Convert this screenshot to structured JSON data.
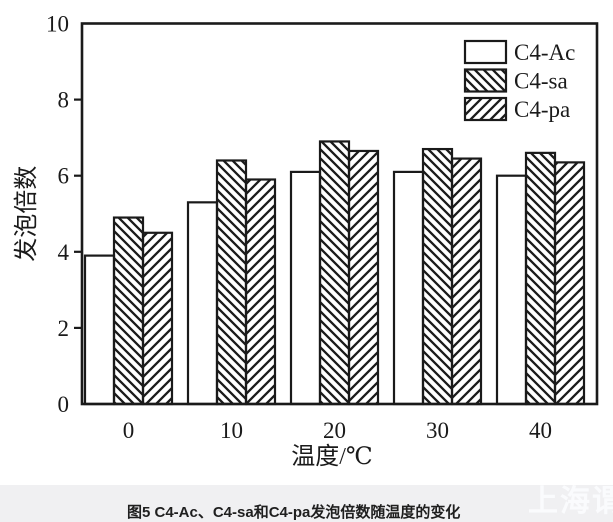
{
  "figure": {
    "caption": "图5  C4-Ac、C4-sa和C4-pa发泡倍数随温度的变化",
    "watermark": "上海谓表"
  },
  "chart_data": {
    "type": "bar",
    "title": "",
    "categories": [
      "0",
      "10",
      "20",
      "30",
      "40"
    ],
    "series": [
      {
        "name": "C4-Ac",
        "hatch": "none",
        "values": [
          3.9,
          5.3,
          6.1,
          6.1,
          6.0
        ]
      },
      {
        "name": "C4-sa",
        "hatch": "\\",
        "values": [
          4.9,
          6.4,
          6.9,
          6.7,
          6.6
        ]
      },
      {
        "name": "C4-pa",
        "hatch": "/",
        "values": [
          4.5,
          5.9,
          6.65,
          6.45,
          6.35
        ]
      }
    ],
    "xlabel": "温度/℃",
    "ylabel": "发泡倍数",
    "ylim": [
      0,
      10
    ],
    "yticks": [
      0,
      2,
      4,
      6,
      8,
      10
    ],
    "grid": false,
    "legend_position": "top-right-inside",
    "bar_fill_color": "#ffffff",
    "line_color": "#1a1a1a",
    "caption_strip_color": "#f0f0f2"
  }
}
